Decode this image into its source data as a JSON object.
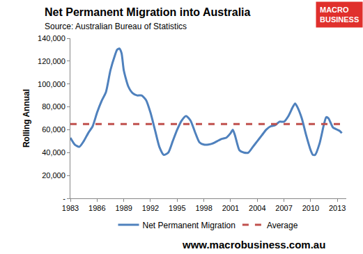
{
  "chart_data": {
    "type": "line",
    "title": "Net Permanent Migration into Australia",
    "subtitle": "Source: Australian Bureau of Statistics",
    "ylabel": "Rolling Annual",
    "logo": [
      "MACRO",
      "BUSINESS"
    ],
    "footer": "www.macrobusiness.com.au",
    "xlim": [
      1983,
      2014
    ],
    "xticks": [
      1983,
      1986,
      1989,
      1992,
      1995,
      1998,
      2001,
      2004,
      2007,
      2010,
      2013
    ],
    "ylim": [
      0,
      140000
    ],
    "yticks": [
      {
        "value": 0,
        "label": "-"
      },
      {
        "value": 20000,
        "label": "20,000"
      },
      {
        "value": 40000,
        "label": "40,000"
      },
      {
        "value": 60000,
        "label": "60,000"
      },
      {
        "value": 80000,
        "label": "80,000"
      },
      {
        "value": 100000,
        "label": "100,000"
      },
      {
        "value": 120000,
        "label": "120,000"
      },
      {
        "value": 140000,
        "label": "140,000"
      }
    ],
    "grid": false,
    "legend": "bottom",
    "series": [
      {
        "name": "Net Permanent Migration",
        "color": "#4f81bd",
        "line_style": "solid",
        "x": [
          1983,
          1983.5,
          1984,
          1984.5,
          1985,
          1985.5,
          1986,
          1986.5,
          1987,
          1987.5,
          1988,
          1988.25,
          1988.5,
          1988.75,
          1989,
          1989.5,
          1990,
          1990.5,
          1991,
          1991.5,
          1992,
          1992.5,
          1993,
          1993.5,
          1994,
          1994.5,
          1995,
          1995.5,
          1996,
          1996.5,
          1997,
          1997.5,
          1998,
          1998.5,
          1999,
          1999.5,
          2000,
          2000.5,
          2001,
          2001.25,
          2001.5,
          2002,
          2002.5,
          2003,
          2003.5,
          2004,
          2004.5,
          2005,
          2005.5,
          2006,
          2006.5,
          2007,
          2007.5,
          2008,
          2008.25,
          2008.5,
          2009,
          2009.5,
          2010,
          2010.25,
          2010.5,
          2011,
          2011.5,
          2011.75,
          2012,
          2012.5,
          2013,
          2013.25,
          2013.5
        ],
        "values": [
          53000,
          47000,
          45000,
          50000,
          57000,
          63000,
          75000,
          85000,
          93000,
          112000,
          125000,
          130000,
          131000,
          127000,
          112000,
          98000,
          92000,
          90000,
          90000,
          86000,
          75000,
          60000,
          45000,
          38000,
          40000,
          50000,
          60000,
          68000,
          72000,
          68000,
          58000,
          49000,
          47000,
          47000,
          48000,
          50000,
          52000,
          53000,
          57000,
          60000,
          55000,
          42000,
          40000,
          40000,
          45000,
          50000,
          55000,
          60000,
          63000,
          64000,
          67000,
          67000,
          72000,
          80000,
          83000,
          80000,
          70000,
          55000,
          42000,
          38000,
          38000,
          48000,
          65000,
          71000,
          70000,
          62000,
          60000,
          59000,
          57000
        ]
      },
      {
        "name": "Average",
        "color": "#c0504d",
        "line_style": "dash",
        "x": [
          1983,
          2014
        ],
        "values": [
          65000,
          65000
        ]
      }
    ]
  }
}
